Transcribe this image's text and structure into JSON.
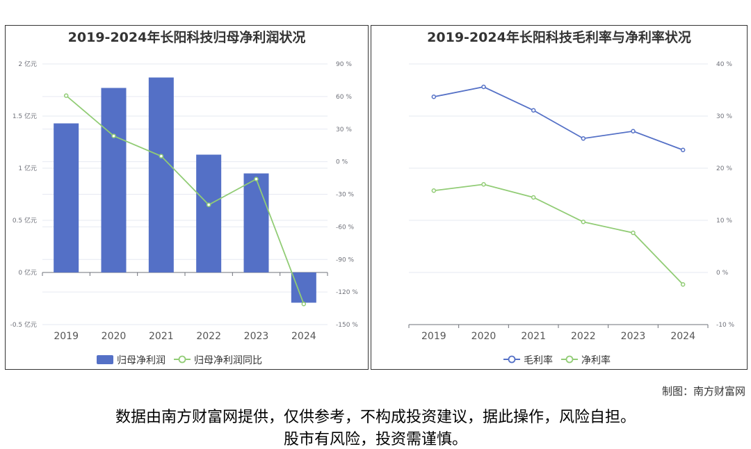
{
  "chart_data": [
    {
      "type": "bar+line",
      "title": "2019-2024年长阳科技归母净利润状况",
      "categories": [
        "2019",
        "2020",
        "2021",
        "2022",
        "2023",
        "2024"
      ],
      "y_left": {
        "ticks": [
          "2 亿元",
          "1.5 亿元",
          "1 亿元",
          "0.5 亿元",
          "0 亿元",
          "-0.5 亿元"
        ],
        "range": [
          -0.5,
          2
        ],
        "unit": "亿元"
      },
      "y_right": {
        "ticks": [
          "90 %",
          "60 %",
          "30 %",
          "0 %",
          "-30 %",
          "-60 %",
          "-90 %",
          "-120 %",
          "-150 %"
        ],
        "range": [
          -150,
          90
        ],
        "unit": "%"
      },
      "series": [
        {
          "name": "归母净利润",
          "type": "bar",
          "axis": "left",
          "color": "#5470c6",
          "values": [
            1.43,
            1.77,
            1.87,
            1.13,
            0.95,
            -0.29
          ]
        },
        {
          "name": "归母净利润同比",
          "type": "line",
          "axis": "right",
          "color": "#91cc75",
          "values": [
            60.8,
            23.7,
            5.1,
            -39.7,
            -16.0,
            -131.0
          ]
        }
      ],
      "legend": "bottom",
      "grid": true
    },
    {
      "type": "line",
      "title": "2019-2024年长阳科技毛利率与净利率状况",
      "categories": [
        "2019",
        "2020",
        "2021",
        "2022",
        "2023",
        "2024"
      ],
      "y_right": {
        "ticks": [
          "40 %",
          "30 %",
          "20 %",
          "10 %",
          "0 %",
          "-10 %"
        ],
        "range": [
          -10,
          40
        ],
        "unit": "%"
      },
      "series": [
        {
          "name": "毛利率",
          "color": "#5470c6",
          "values": [
            33.7,
            35.6,
            31.1,
            25.7,
            27.1,
            23.5
          ]
        },
        {
          "name": "净利率",
          "color": "#91cc75",
          "values": [
            15.7,
            16.9,
            14.4,
            9.7,
            7.6,
            -2.3
          ]
        }
      ],
      "legend": "bottom",
      "grid": true
    }
  ],
  "footer": {
    "credit": "制图：南方财富网",
    "disclaimer1": "数据由南方财富网提供，仅供参考，不构成投资建议，据此操作，风险自担。",
    "disclaimer2": "股市有风险，投资需谨慎。"
  }
}
